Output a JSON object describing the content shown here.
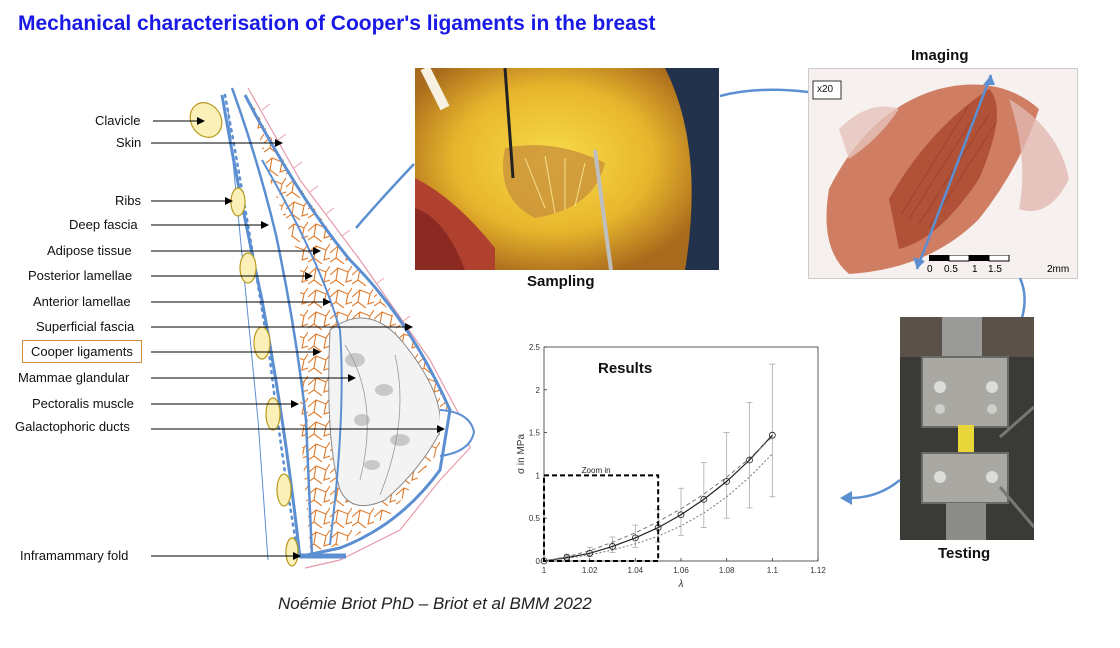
{
  "title": "Mechanical characterisation of Cooper's ligaments in the breast",
  "anatomy_labels": [
    "Clavicle",
    "Skin",
    "Ribs",
    "Deep fascia",
    "Adipose tissue",
    "Posterior lamellae",
    "Anterior lamellae",
    "Superficial fascia",
    "Cooper ligaments",
    "Mammae glandular",
    "Pectoralis muscle",
    "Galactophoric ducts",
    "Inframammary fold"
  ],
  "captions": {
    "sampling": "Sampling",
    "imaging": "Imaging",
    "testing": "Testing",
    "results": "Results"
  },
  "imaging": {
    "magnification": "x20",
    "scale_ticks": [
      "0",
      "0.5",
      "1",
      "1.5",
      "2mm"
    ]
  },
  "credit": "Noémie Briot PhD – Briot et al BMM 2022",
  "chart_data": {
    "type": "line",
    "title": "Results",
    "xlabel": "λ",
    "ylabel": "σ in MPa",
    "xlim": [
      1,
      1.12
    ],
    "ylim": [
      0,
      2.5
    ],
    "xticks": [
      "1",
      "1.02",
      "1.04",
      "1.06",
      "1.08",
      "1.1",
      "1.12"
    ],
    "yticks": [
      "0",
      "0.5",
      "1",
      "1.5",
      "2",
      "2.5"
    ],
    "annotation": "Zoom in",
    "zoom_box": {
      "x": [
        1,
        1.05
      ],
      "y": [
        0,
        1
      ]
    },
    "x": [
      1.0,
      1.01,
      1.02,
      1.03,
      1.04,
      1.05,
      1.06,
      1.07,
      1.08,
      1.09,
      1.1
    ],
    "series": [
      {
        "values": [
          0.0,
          0.04,
          0.09,
          0.17,
          0.27,
          0.39,
          0.54,
          0.72,
          0.93,
          1.18,
          1.47
        ]
      },
      {
        "values": [
          0.0,
          0.05,
          0.12,
          0.22,
          0.33,
          0.46,
          0.61,
          0.78,
          0.98,
          1.2,
          1.45
        ]
      },
      {
        "values": [
          0.0,
          0.03,
          0.07,
          0.13,
          0.2,
          0.29,
          0.41,
          0.56,
          0.75,
          0.98,
          1.25
        ]
      }
    ],
    "error_low": [
      0.0,
      0.02,
      0.05,
      0.1,
      0.16,
      0.22,
      0.3,
      0.39,
      0.5,
      0.62,
      0.75
    ],
    "error_high": [
      0.0,
      0.08,
      0.16,
      0.28,
      0.42,
      0.6,
      0.85,
      1.15,
      1.5,
      1.85,
      2.3
    ],
    "grid": false
  }
}
